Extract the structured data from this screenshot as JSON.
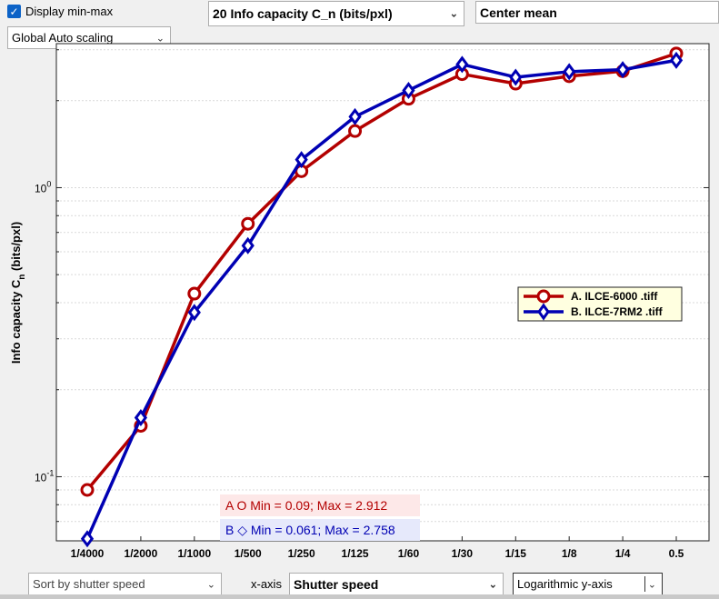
{
  "controls": {
    "display_minmax_label": "Display min-max",
    "display_minmax_checked": true,
    "scaling_select": "Global Auto scaling",
    "metric_select": "20 Info capacity C_n (bits/pxl)",
    "region_select": "Center mean",
    "sort_select": "Sort by shutter speed",
    "xaxis_label": "x-axis",
    "xaxis_select": "Shutter speed",
    "yaxis_select": "Logarithmic y-axis"
  },
  "colors": {
    "series_a": "#b30000",
    "series_b": "#0000b3"
  },
  "chart_data": {
    "type": "line",
    "x": [
      "1/4000",
      "1/2000",
      "1/1000",
      "1/500",
      "1/250",
      "1/125",
      "1/60",
      "1/30",
      "1/15",
      "1/8",
      "1/4",
      "0.5"
    ],
    "ylabel_main": "Info capacity C",
    "ylabel_sub": "n",
    "ylabel_unit": "(bits/pxl)",
    "yscale": "log",
    "ylim": [
      0.06,
      3.15
    ],
    "yticks": [
      0.1,
      1
    ],
    "ytick_labels": [
      {
        "base": "10",
        "exp": "-1"
      },
      {
        "base": "10",
        "exp": "0"
      }
    ],
    "grid": true,
    "legend_position": "right",
    "series": [
      {
        "name": "A. ILCE-6000  .tiff",
        "marker": "circle",
        "values": [
          0.09,
          0.15,
          0.43,
          0.75,
          1.14,
          1.57,
          2.03,
          2.47,
          2.29,
          2.43,
          2.53,
          2.912
        ]
      },
      {
        "name": "B. ILCE-7RM2  .tiff",
        "marker": "diamond",
        "values": [
          0.061,
          0.16,
          0.37,
          0.63,
          1.25,
          1.76,
          2.17,
          2.67,
          2.41,
          2.52,
          2.56,
          2.758
        ]
      }
    ],
    "annotations": [
      "A O Min = 0.09;  Max = 2.912",
      "B ◇ Min = 0.061;  Max = 2.758"
    ]
  }
}
